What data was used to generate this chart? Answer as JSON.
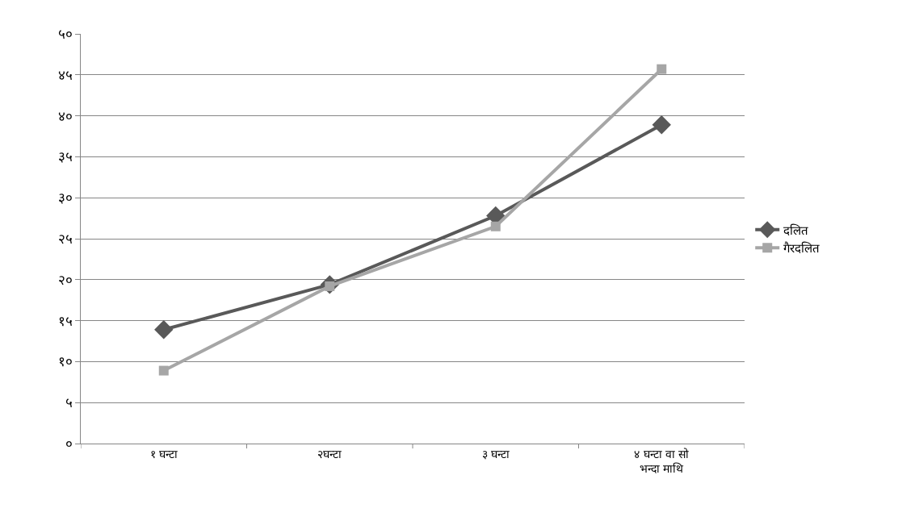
{
  "chart_data": {
    "type": "line",
    "categories": [
      "१ घन्टा",
      "२घन्टा",
      "३ घन्टा",
      "४ घन्टा वा सो भन्दा माथि"
    ],
    "series": [
      {
        "name": "दलित",
        "color": "#595959",
        "marker": "diamond",
        "values": [
          13.9,
          19.4,
          27.8,
          38.9
        ]
      },
      {
        "name": "गैरदलित",
        "color": "#a6a6a6",
        "marker": "square",
        "values": [
          8.9,
          19.2,
          26.5,
          45.7
        ]
      }
    ],
    "ylim": [
      0,
      50
    ],
    "yticks": [
      {
        "value": 0,
        "label": "०"
      },
      {
        "value": 5,
        "label": "५"
      },
      {
        "value": 10,
        "label": "१०"
      },
      {
        "value": 15,
        "label": "१५"
      },
      {
        "value": 20,
        "label": "२०"
      },
      {
        "value": 25,
        "label": "२५"
      },
      {
        "value": 30,
        "label": "३०"
      },
      {
        "value": 35,
        "label": "३५"
      },
      {
        "value": 40,
        "label": "४०"
      },
      {
        "value": 45,
        "label": "४५"
      },
      {
        "value": 50,
        "label": "५०"
      }
    ],
    "grid": "y",
    "legend": "right",
    "line_style": "solid"
  }
}
